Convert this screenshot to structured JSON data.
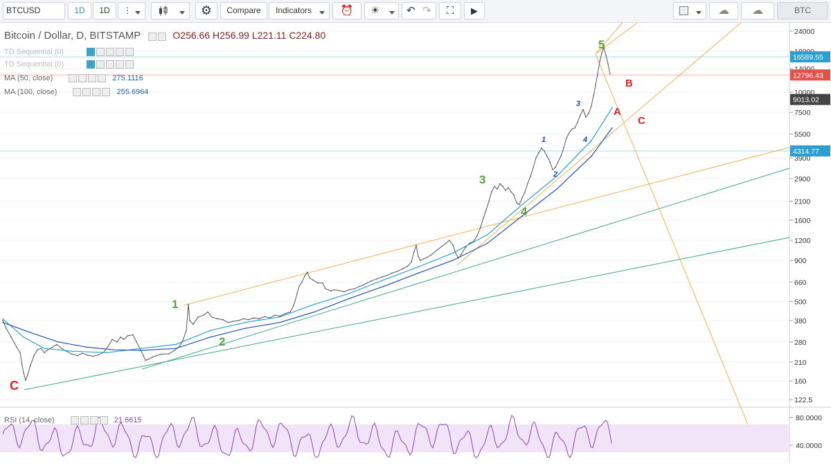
{
  "toolbar": {
    "symbol": "BTCUSD",
    "interval_1": "1D",
    "interval_2": "1D",
    "compare_label": "Compare",
    "indicators_label": "Indicators",
    "currency": "BTC"
  },
  "legend": {
    "title": "Bitcoin / Dollar, D, BITSTAMP",
    "open": "O256.66",
    "high": "H256.99",
    "low": "L221.11",
    "close": "C224.80",
    "td1": "TD Sequential (0)",
    "td2": "TD Sequential (0)",
    "ma50_label": "MA (50, close)",
    "ma50_value": "275.1116",
    "ma100_label": "MA (100, close)",
    "ma100_value": "255.6964",
    "rsi_label": "RSI (14, close)",
    "rsi_value": "21.6615"
  },
  "chart_data": {
    "type": "line",
    "yscale": "log",
    "ylim": [
      110,
      27000
    ],
    "y_ticks": [
      24000,
      18000,
      14000,
      10000,
      7500,
      5500,
      3900,
      2900,
      2100,
      1600,
      1200,
      900,
      660,
      500,
      380,
      280,
      210,
      160,
      122.5
    ],
    "price_labels": [
      {
        "value": 16589.55,
        "text": "16589.55",
        "color": "#2a9fd0"
      },
      {
        "value": 12796.43,
        "text": "12796.43",
        "color": "#e0524a"
      },
      {
        "value": 9013.02,
        "text": "9013.02",
        "color": "#444444"
      },
      {
        "value": 4314.77,
        "text": "4314.77",
        "color": "#2a9fd0"
      }
    ],
    "series": [
      {
        "values": [
          [
            0,
            380
          ],
          [
            5,
            340
          ],
          [
            12,
            300
          ],
          [
            20,
            260
          ],
          [
            25,
            240
          ],
          [
            28,
            200
          ],
          [
            30,
            180
          ],
          [
            33,
            162
          ],
          [
            36,
            175
          ],
          [
            40,
            200
          ],
          [
            45,
            230
          ],
          [
            50,
            250
          ],
          [
            55,
            255
          ],
          [
            60,
            240
          ],
          [
            65,
            250
          ],
          [
            72,
            260
          ],
          [
            78,
            270
          ],
          [
            85,
            255
          ],
          [
            92,
            245
          ],
          [
            100,
            235
          ],
          [
            108,
            230
          ],
          [
            115,
            238
          ],
          [
            122,
            232
          ],
          [
            130,
            228
          ],
          [
            138,
            232
          ],
          [
            145,
            240
          ],
          [
            152,
            262
          ],
          [
            158,
            290
          ],
          [
            165,
            280
          ],
          [
            170,
            300
          ],
          [
            175,
            290
          ],
          [
            180,
            305
          ],
          [
            188,
            310
          ],
          [
            193,
            280
          ],
          [
            198,
            255
          ],
          [
            203,
            230
          ],
          [
            206,
            215
          ],
          [
            210,
            218
          ],
          [
            216,
            225
          ],
          [
            222,
            230
          ],
          [
            230,
            235
          ],
          [
            240,
            236
          ],
          [
            248,
            248
          ],
          [
            255,
            262
          ],
          [
            260,
            285
          ],
          [
            265,
            330
          ],
          [
            268,
            480
          ],
          [
            270,
            380
          ],
          [
            275,
            360
          ],
          [
            282,
            400
          ],
          [
            290,
            410
          ],
          [
            296,
            430
          ],
          [
            302,
            400
          ],
          [
            310,
            390
          ],
          [
            318,
            385
          ],
          [
            325,
            370
          ],
          [
            332,
            375
          ],
          [
            340,
            380
          ],
          [
            348,
            390
          ],
          [
            355,
            385
          ],
          [
            362,
            395
          ],
          [
            370,
            390
          ],
          [
            378,
            402
          ],
          [
            386,
            395
          ],
          [
            393,
            410
          ],
          [
            400,
            405
          ],
          [
            408,
            420
          ],
          [
            415,
            430
          ],
          [
            420,
            470
          ],
          [
            425,
            560
          ],
          [
            428,
            620
          ],
          [
            432,
            660
          ],
          [
            436,
            720
          ],
          [
            440,
            760
          ],
          [
            443,
            700
          ],
          [
            448,
            680
          ],
          [
            455,
            650
          ],
          [
            462,
            650
          ],
          [
            466,
            600
          ],
          [
            470,
            590
          ],
          [
            474,
            580
          ],
          [
            478,
            590
          ],
          [
            485,
            585
          ],
          [
            493,
            575
          ],
          [
            500,
            590
          ],
          [
            508,
            600
          ],
          [
            515,
            620
          ],
          [
            520,
            630
          ],
          [
            526,
            650
          ],
          [
            532,
            670
          ],
          [
            540,
            690
          ],
          [
            548,
            710
          ],
          [
            555,
            725
          ],
          [
            562,
            750
          ],
          [
            570,
            770
          ],
          [
            578,
            800
          ],
          [
            585,
            830
          ],
          [
            590,
            880
          ],
          [
            594,
            1020
          ],
          [
            597,
            1120
          ],
          [
            600,
            950
          ],
          [
            603,
            900
          ],
          [
            608,
            920
          ],
          [
            613,
            940
          ],
          [
            618,
            970
          ],
          [
            622,
            1000
          ],
          [
            628,
            1050
          ],
          [
            634,
            1100
          ],
          [
            640,
            1150
          ],
          [
            645,
            1200
          ],
          [
            650,
            1120
          ],
          [
            654,
            1000
          ],
          [
            658,
            930
          ],
          [
            662,
            980
          ],
          [
            668,
            1080
          ],
          [
            674,
            1150
          ],
          [
            680,
            1180
          ],
          [
            685,
            1280
          ],
          [
            690,
            1450
          ],
          [
            694,
            1650
          ],
          [
            698,
            1850
          ],
          [
            702,
            2100
          ],
          [
            706,
            2400
          ],
          [
            710,
            2600
          ],
          [
            714,
            2500
          ],
          [
            718,
            2700
          ],
          [
            722,
            2600
          ],
          [
            726,
            2450
          ],
          [
            730,
            2550
          ],
          [
            734,
            2400
          ],
          [
            738,
            2300
          ],
          [
            742,
            2050
          ],
          [
            746,
            2000
          ],
          [
            750,
            2200
          ],
          [
            754,
            2400
          ],
          [
            758,
            2700
          ],
          [
            762,
            3000
          ],
          [
            766,
            3400
          ],
          [
            770,
            3900
          ],
          [
            774,
            4200
          ],
          [
            778,
            4500
          ],
          [
            782,
            4300
          ],
          [
            786,
            4000
          ],
          [
            790,
            3700
          ],
          [
            794,
            3300
          ],
          [
            798,
            3400
          ],
          [
            802,
            3700
          ],
          [
            806,
            4000
          ],
          [
            810,
            4500
          ],
          [
            814,
            5200
          ],
          [
            818,
            5600
          ],
          [
            822,
            5900
          ],
          [
            826,
            6000
          ],
          [
            830,
            6500
          ],
          [
            834,
            7200
          ],
          [
            838,
            7800
          ],
          [
            842,
            7000
          ],
          [
            846,
            7400
          ],
          [
            850,
            8200
          ],
          [
            853,
            9500
          ],
          [
            856,
            11000
          ],
          [
            859,
            13000
          ],
          [
            862,
            15500
          ],
          [
            865,
            17500
          ],
          [
            868,
            19000
          ],
          [
            871,
            17000
          ],
          [
            874,
            15000
          ],
          [
            877,
            13000
          ]
        ]
      },
      {
        "name": "MA (50, close)",
        "values": [
          [
            0,
            390
          ],
          [
            30,
            300
          ],
          [
            60,
            255
          ],
          [
            100,
            245
          ],
          [
            150,
            240
          ],
          [
            200,
            255
          ],
          [
            250,
            270
          ],
          [
            300,
            330
          ],
          [
            350,
            370
          ],
          [
            400,
            400
          ],
          [
            450,
            480
          ],
          [
            500,
            560
          ],
          [
            550,
            680
          ],
          [
            600,
            820
          ],
          [
            650,
            1000
          ],
          [
            700,
            1300
          ],
          [
            750,
            2000
          ],
          [
            800,
            3000
          ],
          [
            850,
            5000
          ],
          [
            880,
            8000
          ]
        ]
      },
      {
        "name": "MA (100, close)",
        "values": [
          [
            0,
            370
          ],
          [
            40,
            320
          ],
          [
            80,
            280
          ],
          [
            120,
            260
          ],
          [
            160,
            250
          ],
          [
            200,
            248
          ],
          [
            250,
            255
          ],
          [
            300,
            300
          ],
          [
            350,
            340
          ],
          [
            400,
            370
          ],
          [
            450,
            430
          ],
          [
            500,
            520
          ],
          [
            550,
            620
          ],
          [
            600,
            750
          ],
          [
            650,
            900
          ],
          [
            700,
            1150
          ],
          [
            750,
            1700
          ],
          [
            800,
            2500
          ],
          [
            850,
            4000
          ],
          [
            880,
            6000
          ]
        ]
      }
    ],
    "rsi": {
      "name": "RSI (14, close)",
      "ylim": [
        20,
        90
      ],
      "ticks": [
        80,
        40
      ],
      "band": [
        30,
        70
      ]
    },
    "wave_labels": [
      {
        "text": "C",
        "color": "#e02020"
      },
      {
        "text": "1",
        "color": "#5aa045"
      },
      {
        "text": "2",
        "color": "#5aa045"
      },
      {
        "text": "3",
        "color": "#5aa045"
      },
      {
        "text": "4",
        "color": "#5aa045"
      },
      {
        "text": "5",
        "color": "#5aa045"
      },
      {
        "text": "1",
        "color": "#1d3fbf"
      },
      {
        "text": "2",
        "color": "#1d3fbf"
      },
      {
        "text": "3",
        "color": "#1d3fbf"
      },
      {
        "text": "4",
        "color": "#1d3fbf"
      },
      {
        "text": "A",
        "color": "#e02020"
      },
      {
        "text": "B",
        "color": "#e02020"
      },
      {
        "text": "C",
        "color": "#e02020"
      }
    ]
  }
}
